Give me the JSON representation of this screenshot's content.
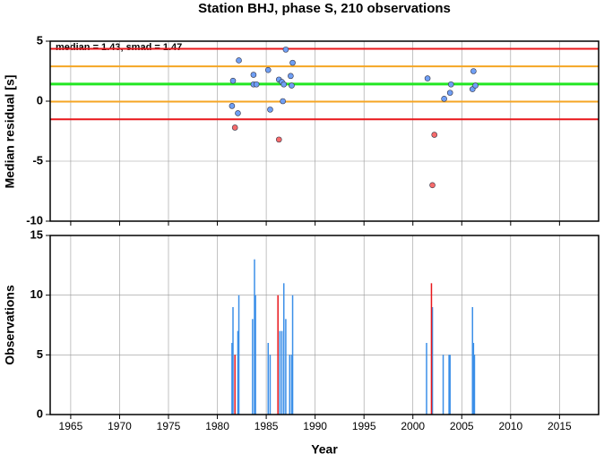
{
  "chart_data": [
    {
      "type": "scatter",
      "title": "Station BHJ, phase S, 210 observations",
      "annotation": "median = 1.43, smad = 1.47",
      "ylabel": "Median residual [s]",
      "xlim": [
        1962.9,
        2019
      ],
      "xticks": [
        1965,
        1970,
        1975,
        1980,
        1985,
        1990,
        1995,
        2000,
        2005,
        2010,
        2015
      ],
      "ylim": [
        -10,
        5
      ],
      "yticks": [
        -10,
        -5,
        0,
        5
      ],
      "grid": true,
      "lines": [
        {
          "value": 4.37,
          "color": "#e8171b"
        },
        {
          "value": 2.9,
          "color": "#f5a623"
        },
        {
          "value": 1.43,
          "color": "#22e622"
        },
        {
          "value": -0.04,
          "color": "#f5a623"
        },
        {
          "value": -1.51,
          "color": "#e8171b"
        }
      ],
      "series": [
        {
          "color": "#6f9ff5",
          "x": [
            1981.6,
            1982.2,
            1981.5,
            1982.1,
            1983.7,
            1983.7,
            1984.0,
            1985.2,
            1985.4,
            1986.3,
            1986.6,
            1986.7,
            1987.0,
            1986.8,
            1987.7,
            1987.5,
            1987.6,
            2001.5,
            2003.2,
            2003.8,
            2003.9,
            2006.2,
            2006.1,
            2006.4
          ],
          "values": [
            1.7,
            3.4,
            -0.4,
            -1.0,
            2.2,
            1.4,
            1.4,
            2.6,
            -0.7,
            1.8,
            1.6,
            0.0,
            4.3,
            1.4,
            3.2,
            2.1,
            1.3,
            1.9,
            0.2,
            0.7,
            1.4,
            2.5,
            1.0,
            1.3
          ]
        },
        {
          "color": "#f76b6b",
          "x": [
            1981.8,
            1986.3,
            2002.2,
            2002.0
          ],
          "values": [
            -2.2,
            -3.2,
            -2.8,
            -7.0
          ]
        }
      ]
    },
    {
      "type": "bar",
      "ylabel": "Observations",
      "xlabel": "Year",
      "xlim": [
        1962.9,
        2019
      ],
      "xticks": [
        1965,
        1970,
        1975,
        1980,
        1985,
        1990,
        1995,
        2000,
        2005,
        2010,
        2015
      ],
      "ylim": [
        0,
        15
      ],
      "yticks": [
        0,
        5,
        10,
        15
      ],
      "grid": true,
      "series": [
        {
          "color": "#3b8fe8",
          "x": [
            1981.5,
            1981.6,
            1982.1,
            1982.2,
            1983.6,
            1983.8,
            1983.9,
            1985.2,
            1985.4,
            1986.4,
            1986.6,
            1986.8,
            1987.0,
            1987.4,
            1987.6,
            1987.7,
            2001.4,
            2002.0,
            2003.1,
            2003.7,
            2003.8,
            2006.1,
            2006.2,
            2006.3
          ],
          "values": [
            6,
            9,
            7,
            10,
            8,
            13,
            10,
            6,
            5,
            7,
            7,
            11,
            8,
            5,
            5,
            10,
            6,
            9,
            5,
            5,
            5,
            9,
            6,
            5
          ]
        },
        {
          "color": "#e8171b",
          "x": [
            1981.8,
            1986.2,
            2001.9
          ],
          "values": [
            5,
            10,
            11
          ]
        }
      ]
    }
  ]
}
